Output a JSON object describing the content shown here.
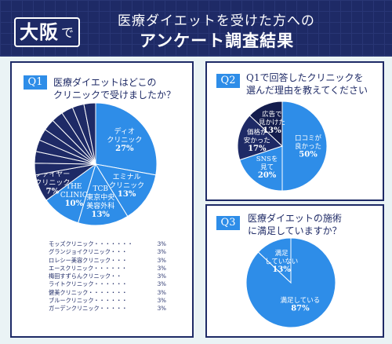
{
  "header": {
    "city": "大阪",
    "city_suffix": "で",
    "title_line1": "医療ダイエットを受けた方への",
    "title_line2": "アンケート調査結果"
  },
  "q1": {
    "badge": "Q1",
    "question_line1": "医療ダイエットはどこの",
    "question_line2": "クリニックで受けましたか？",
    "others": [
      {
        "name": "モッズクリニック・・・・・・・",
        "value": "3%"
      },
      {
        "name": "グランジョイクリニック・・・",
        "value": "3%"
      },
      {
        "name": "ロレシー美容クリニック・・・",
        "value": "3%"
      },
      {
        "name": "エースクリニック・・・・・・",
        "value": "3%"
      },
      {
        "name": "梅田すずらんクリニック・・",
        "value": "3%"
      },
      {
        "name": "ライトクリニック・・・・・・",
        "value": "3%"
      },
      {
        "name": "健美クリニック・・・・・・・",
        "value": "3%"
      },
      {
        "name": "ブルークリニック・・・・・・",
        "value": "3%"
      },
      {
        "name": "ガーデンクリニック・・・・・",
        "value": "3%"
      }
    ]
  },
  "q2": {
    "badge": "Q2",
    "question_line1": "Q1で回答したクリニックを",
    "question_line2": "選んだ理由を教えてください"
  },
  "q3": {
    "badge": "Q3",
    "question_line1": "医療ダイエットの施術",
    "question_line2": "に満足していますか？"
  },
  "colors": {
    "navy": "#1e2a66",
    "blue": "#2e8de8",
    "background": "#eaf3f5",
    "divider": "#ffffff"
  },
  "chart_data": [
    {
      "type": "pie",
      "id": "q1",
      "slices": [
        {
          "labels": [
            "ディオ",
            "クリニック"
          ],
          "value": 27,
          "value_label": "27%",
          "color": "#2e8de8"
        },
        {
          "labels": [
            "エミナル",
            "クリニック"
          ],
          "value": 13,
          "value_label": "13%",
          "color": "#2e8de8"
        },
        {
          "labels": [
            "TCB",
            "東京中央",
            "美容外科"
          ],
          "value": 13,
          "value_label": "13%",
          "color": "#2e8de8"
        },
        {
          "labels": [
            "THE",
            "CLINIC"
          ],
          "value": 10,
          "value_label": "10%",
          "color": "#2e8de8"
        },
        {
          "labels": [
            "ファイヤー",
            "クリニック"
          ],
          "value": 7,
          "value_label": "7%",
          "color": "#1e2a66"
        },
        {
          "labels": [],
          "value": 3,
          "value_label": "",
          "color": "#1e2a66"
        },
        {
          "labels": [],
          "value": 3,
          "value_label": "",
          "color": "#1e2a66"
        },
        {
          "labels": [],
          "value": 3,
          "value_label": "",
          "color": "#1e2a66"
        },
        {
          "labels": [],
          "value": 3,
          "value_label": "",
          "color": "#1e2a66"
        },
        {
          "labels": [],
          "value": 3,
          "value_label": "",
          "color": "#1e2a66"
        },
        {
          "labels": [],
          "value": 3,
          "value_label": "",
          "color": "#1e2a66"
        },
        {
          "labels": [],
          "value": 3,
          "value_label": "",
          "color": "#1e2a66"
        },
        {
          "labels": [],
          "value": 3,
          "value_label": "",
          "color": "#1e2a66"
        },
        {
          "labels": [],
          "value": 3,
          "value_label": "",
          "color": "#1e2a66"
        }
      ]
    },
    {
      "type": "pie",
      "id": "q2",
      "slices": [
        {
          "labels": [
            "口コミが",
            "良かった"
          ],
          "value": 50,
          "value_label": "50%",
          "color": "#2e8de8"
        },
        {
          "labels": [
            "SNSを",
            "見て"
          ],
          "value": 20,
          "value_label": "20%",
          "color": "#2e8de8"
        },
        {
          "labels": [
            "価格が",
            "安かった"
          ],
          "value": 17,
          "value_label": "17%",
          "color": "#1e2a66"
        },
        {
          "labels": [
            "広告で",
            "見かけた"
          ],
          "value": 13,
          "value_label": "13%",
          "color": "#141d4d"
        }
      ]
    },
    {
      "type": "pie",
      "id": "q3",
      "slices": [
        {
          "labels": [
            "満足している"
          ],
          "value": 87,
          "value_label": "87%",
          "color": "#2e8de8"
        },
        {
          "labels": [
            "満足",
            "していない"
          ],
          "value": 13,
          "value_label": "13%",
          "color": "#2e8de8"
        }
      ]
    }
  ]
}
